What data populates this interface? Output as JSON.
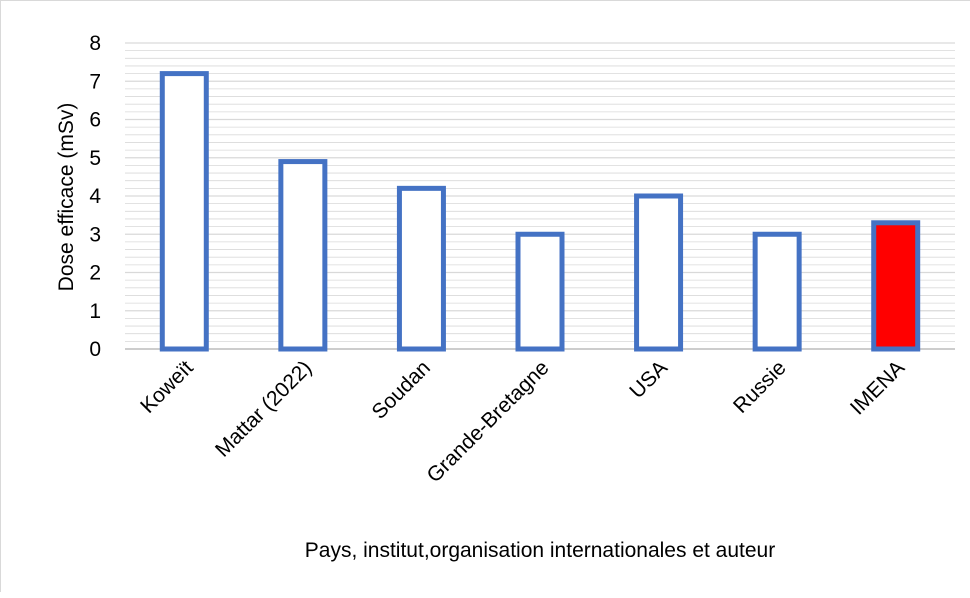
{
  "chart_data": {
    "type": "bar",
    "categories": [
      "Koweït",
      "Mattar (2022)",
      "Soudan",
      "Grande-Bretagne",
      "USA",
      "Russie",
      "IMENA"
    ],
    "values": [
      7.2,
      4.9,
      4.2,
      3.0,
      4.0,
      3.0,
      3.3
    ],
    "xlabel": "Pays, institut,organisation internationales et auteur",
    "ylabel": "Dose efficace (mSv)",
    "ylim": [
      0,
      8
    ],
    "yticks": [
      0,
      1,
      2,
      3,
      4,
      5,
      6,
      7,
      8
    ],
    "grid": true,
    "legend": "none",
    "bar_style": "outlined",
    "colors": {
      "outline": "#4472c4",
      "highlight_fill": "#ff0000",
      "highlight_category": "IMENA",
      "gridline": "#d9d9d9"
    }
  }
}
